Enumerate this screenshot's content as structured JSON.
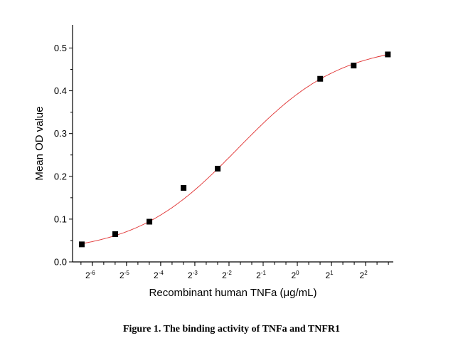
{
  "chart_data": {
    "type": "scatter",
    "title": "",
    "xlabel": "Recombinant human TNFa (μg/mL)",
    "ylabel": "Mean OD value",
    "x_scale": "log2",
    "xlim_log2": [
      -6.58,
      2.81
    ],
    "ylim": [
      0.0,
      0.554
    ],
    "x_ticks_log2": [
      -6,
      -5,
      -4,
      -3,
      -2,
      -1,
      0,
      1,
      2
    ],
    "x_tick_labels": [
      {
        "base": "2",
        "exp": "-6"
      },
      {
        "base": "2",
        "exp": "-5"
      },
      {
        "base": "2",
        "exp": "-4"
      },
      {
        "base": "2",
        "exp": "-3"
      },
      {
        "base": "2",
        "exp": "-2"
      },
      {
        "base": "2",
        "exp": "-1"
      },
      {
        "base": "2",
        "exp": "0"
      },
      {
        "base": "2",
        "exp": "1"
      },
      {
        "base": "2",
        "exp": "2"
      }
    ],
    "y_ticks": [
      0.0,
      0.1,
      0.2,
      0.3,
      0.4,
      0.5
    ],
    "y_tick_labels": [
      "0.0",
      "0.1",
      "0.2",
      "0.3",
      "0.4",
      "0.5"
    ],
    "series": [
      {
        "name": "Mean OD",
        "x_log2": [
          -6.31,
          -5.33,
          -4.33,
          -3.33,
          -2.33,
          0.67,
          1.65,
          2.65
        ],
        "y": [
          0.041,
          0.065,
          0.094,
          0.173,
          0.218,
          0.428,
          0.459,
          0.485
        ],
        "marker": "square",
        "color": "#000000"
      }
    ],
    "fit": {
      "type": "logistic",
      "bottom": 0.02,
      "top": 0.51,
      "x0_log2": -1.74,
      "width_log2": 1.51,
      "range_log2": [
        -6.35,
        2.7
      ],
      "color": "#e03030"
    },
    "grid": false,
    "legend": "none"
  },
  "caption": "Figure 1. The binding activity of TNFa and TNFR1"
}
